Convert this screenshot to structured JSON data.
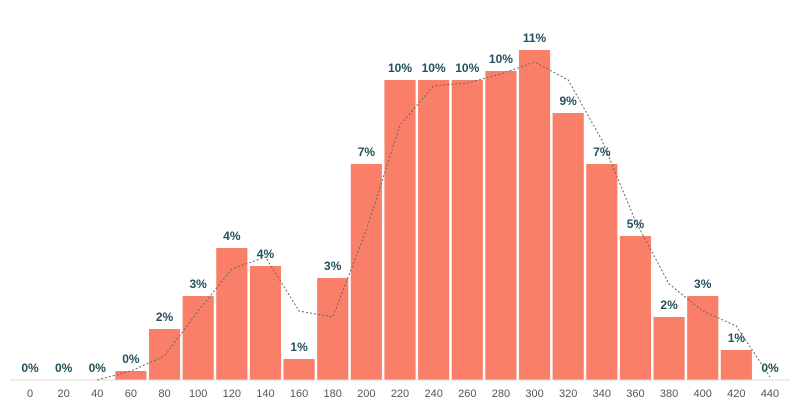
{
  "chart_data": {
    "type": "bar",
    "categories": [
      0,
      20,
      40,
      60,
      80,
      100,
      120,
      140,
      160,
      180,
      200,
      220,
      240,
      260,
      280,
      300,
      320,
      340,
      360,
      380,
      400,
      420,
      440
    ],
    "values": [
      0,
      0,
      0,
      0.3,
      1.7,
      2.8,
      4.4,
      3.8,
      0.7,
      3.4,
      7.2,
      10,
      10,
      10,
      10.3,
      11,
      8.9,
      7.2,
      4.8,
      2.1,
      2.8,
      1,
      0
    ],
    "value_labels": [
      "0%",
      "0%",
      "0%",
      "0%",
      "2%",
      "3%",
      "4%",
      "4%",
      "1%",
      "3%",
      "7%",
      "10%",
      "10%",
      "10%",
      "10%",
      "11%",
      "9%",
      "7%",
      "5%",
      "2%",
      "3%",
      "1%",
      "0%"
    ],
    "color": "#fa7f68",
    "trend": {
      "color": "#666666",
      "values": [
        null,
        null,
        0,
        0.3,
        0.8,
        2.3,
        3.7,
        4.1,
        2.3,
        2.1,
        5,
        8.5,
        9.8,
        9.9,
        10.2,
        10.6,
        10,
        8,
        5.3,
        3.2,
        2.3,
        1.8,
        0.1
      ]
    },
    "ylim": [
      0,
      12.6
    ]
  }
}
